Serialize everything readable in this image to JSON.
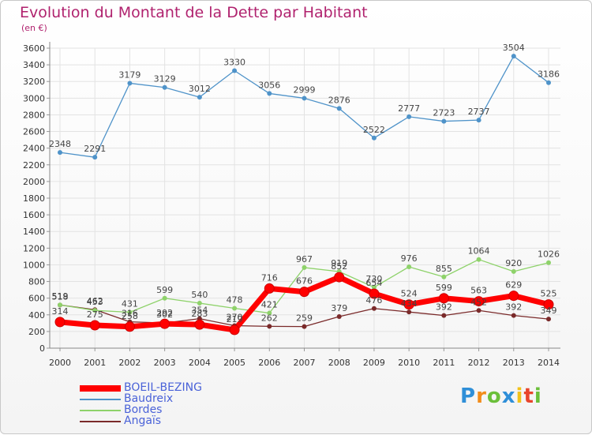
{
  "header": {
    "title": "Evolution du Montant de la Dette par Habitant",
    "subtitle": "(en €)"
  },
  "logo": {
    "text": "Proxiti"
  },
  "colors": {
    "title": "#b0226e",
    "axis_text": "#333333",
    "legend_text": "#4a62d8",
    "grid": "#e3e3e3"
  },
  "chart_data": {
    "type": "line",
    "title": "Evolution du Montant de la Dette par Habitant",
    "subtitle": "(en €)",
    "xlabel": "",
    "ylabel": "",
    "ylim": [
      0,
      3600
    ],
    "yticks": [
      0,
      200,
      400,
      600,
      800,
      1000,
      1200,
      1400,
      1600,
      1800,
      2000,
      2200,
      2400,
      2600,
      2800,
      3000,
      3200,
      3400,
      3600
    ],
    "grid": true,
    "legend": "bottom-left",
    "x": [
      "2000",
      "2001",
      "2002",
      "2003",
      "2004",
      "2005",
      "2006",
      "2007",
      "2008",
      "2009",
      "2010",
      "2011",
      "2012",
      "2013",
      "2014"
    ],
    "series": [
      {
        "name": "BOEIL-BEZING",
        "color": "#ff0000",
        "values": [
          314,
          275,
          258,
          292,
          283,
          219,
          716,
          676,
          852,
          654,
          524,
          599,
          563,
          629,
          525
        ]
      },
      {
        "name": "Baudreix",
        "color": "#4f93c9",
        "values": [
          2348,
          2291,
          3179,
          3129,
          3012,
          3330,
          3056,
          2999,
          2876,
          2522,
          2777,
          2723,
          2737,
          3504,
          3186
        ]
      },
      {
        "name": "Bordes",
        "color": "#8ed26a",
        "values": [
          519,
          453,
          431,
          599,
          540,
          478,
          421,
          967,
          919,
          730,
          976,
          855,
          1064,
          920,
          1026
        ]
      },
      {
        "name": "Angaïs",
        "color": "#7a2a2a",
        "values": [
          518,
          462,
          316,
          302,
          354,
          270,
          262,
          259,
          379,
          476,
          434,
          392,
          452,
          392,
          349
        ]
      }
    ]
  }
}
